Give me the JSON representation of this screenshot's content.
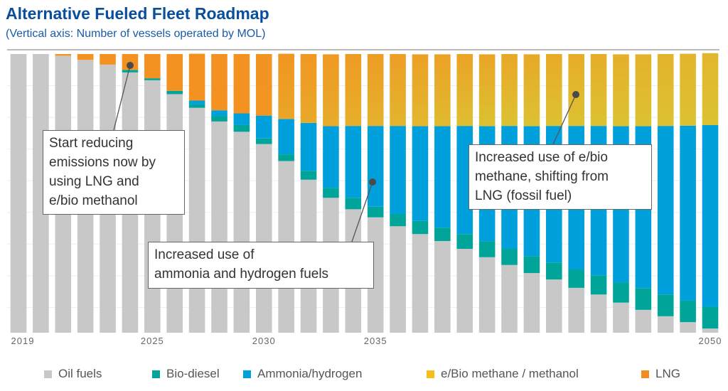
{
  "title": "Alternative Fueled Fleet Roadmap",
  "subtitle": "(Vertical axis: Number of vessels operated by MOL)",
  "chart_data": {
    "type": "bar",
    "stacked": true,
    "title": "Alternative Fueled Fleet Roadmap",
    "ylabel": "(Vertical axis: Number of vessels operated by MOL)",
    "value_unit": "percent of fleet (estimated, no y-tick labels)",
    "ylim": [
      0,
      100
    ],
    "grid": true,
    "legend_position": "bottom",
    "x": [
      2019,
      2020,
      2021,
      2022,
      2023,
      2024,
      2025,
      2026,
      2027,
      2028,
      2029,
      2030,
      2031,
      2032,
      2033,
      2034,
      2035,
      2036,
      2037,
      2038,
      2039,
      2040,
      2041,
      2042,
      2043,
      2044,
      2045,
      2046,
      2047,
      2048,
      2049,
      2050
    ],
    "x_tick_labels": [
      {
        "year": 2019,
        "label": "2019"
      },
      {
        "year": 2025,
        "label": "2025"
      },
      {
        "year": 2030,
        "label": "2030"
      },
      {
        "year": 2035,
        "label": "2035"
      },
      {
        "year": 2050,
        "label": "2050"
      }
    ],
    "series": [
      {
        "name": "Oil fuels",
        "color": "#c8c8c8",
        "values": [
          100,
          100,
          99.4,
          97.9,
          96.2,
          93.4,
          90.6,
          85.6,
          80.7,
          75.8,
          72.1,
          67.7,
          61.6,
          54.9,
          48.4,
          44.3,
          41.4,
          38.2,
          35.4,
          32.9,
          30.1,
          27.1,
          24.3,
          21.4,
          19.1,
          16.1,
          13.7,
          10.8,
          8.2,
          5.9,
          3.8,
          1.5
        ]
      },
      {
        "name": "Bio-diesel",
        "color": "#00a499",
        "values": [
          0,
          0,
          0,
          0,
          0,
          0.9,
          0.7,
          1.2,
          1.3,
          2.0,
          2.4,
          2.0,
          2.4,
          3.2,
          3.6,
          4.1,
          3.8,
          4.4,
          4.7,
          4.8,
          5.3,
          5.7,
          5.8,
          6.1,
          6.1,
          6.6,
          6.9,
          7.2,
          7.8,
          7.8,
          7.7,
          7.8
        ]
      },
      {
        "name": "Ammonia/hydrogen",
        "color": "#00a0dc",
        "values": [
          0,
          0,
          0,
          0,
          0,
          0,
          0,
          0,
          1.3,
          2.0,
          4.2,
          8.2,
          12.7,
          17.2,
          22.1,
          25.8,
          29.0,
          31.6,
          34.0,
          36.4,
          38.8,
          41.3,
          44.1,
          46.6,
          49.0,
          51.5,
          53.6,
          56.1,
          58.1,
          60.5,
          62.8,
          65.2
        ]
      },
      {
        "name": "e/Bio methane / methanol + LNG",
        "color": "#f39220",
        "values": [
          0,
          0,
          0.6,
          2.1,
          3.8,
          5.7,
          8.7,
          13.2,
          16.8,
          20.2,
          21.3,
          22.1,
          23.4,
          24.7,
          25.8,
          25.8,
          25.8,
          25.8,
          25.8,
          25.8,
          25.8,
          25.8,
          25.8,
          25.8,
          25.8,
          25.8,
          25.8,
          25.8,
          25.8,
          25.8,
          25.8,
          25.8
        ]
      }
    ],
    "top_block_note": "LNG (orange) gradually shifts to e/Bio methane (yellow) toward 2050",
    "annotations": [
      "Start reducing emissions now by using LNG and e/bio methanol",
      "Increased use of ammonia and hydrogen fuels",
      "Increased use of e/bio methane, shifting from LNG (fossil fuel)"
    ]
  },
  "notes": {
    "n1": [
      "Start reducing",
      "emissions now by",
      "using LNG and",
      "e/bio methanol"
    ],
    "n2": [
      "Increased use of",
      "ammonia and hydrogen fuels"
    ],
    "n3": [
      "Increased use of e/bio",
      "methane, shifting from",
      "LNG (fossil fuel)"
    ]
  },
  "legend": [
    {
      "label": "Oil fuels",
      "color": "#c8c8c8"
    },
    {
      "label": "Bio-diesel",
      "color": "#00a499"
    },
    {
      "label": "Ammonia/hydrogen",
      "color": "#00a0dc"
    },
    {
      "label": "e/Bio methane / methanol",
      "color": "#f5be1a"
    },
    {
      "label": "LNG",
      "color": "#f18c22"
    }
  ],
  "colors": {
    "lng": "#f39220",
    "methane": "#dcc232",
    "title": "#0a4f9e"
  }
}
